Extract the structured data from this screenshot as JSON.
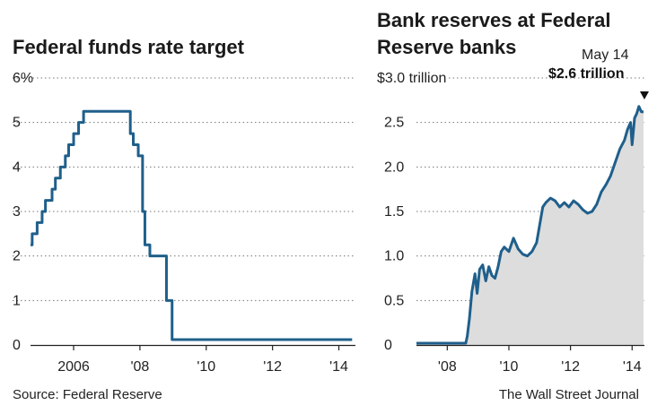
{
  "footer": {
    "source": "Source: Federal Reserve",
    "credit": "The Wall Street Journal"
  },
  "chart_data": [
    {
      "type": "line",
      "title": "Federal funds rate target",
      "ylim": [
        0,
        6
      ],
      "yticks": [
        0,
        1,
        2,
        3,
        4,
        5,
        6
      ],
      "ytick_labels": [
        "0",
        "1",
        "2",
        "3",
        "4",
        "5",
        "6%"
      ],
      "xlim": [
        2004.7,
        2014.5
      ],
      "xticks": [
        2006,
        2008,
        2010,
        2012,
        2014
      ],
      "xtick_labels": [
        "2006",
        "'08",
        "'10",
        "'12",
        "'14"
      ],
      "grid": true,
      "color": "#1f5f8b",
      "series": [
        {
          "step": true,
          "x": [
            2004.7,
            2004.75,
            2004.9,
            2005.05,
            2005.15,
            2005.35,
            2005.45,
            2005.6,
            2005.75,
            2005.85,
            2006.0,
            2006.15,
            2006.3,
            2006.5,
            2007.71,
            2007.8,
            2007.95,
            2008.08,
            2008.15,
            2008.3,
            2008.8,
            2008.97,
            2014.4
          ],
          "y": [
            2.25,
            2.5,
            2.75,
            3.0,
            3.25,
            3.5,
            3.75,
            4.0,
            4.25,
            4.5,
            4.75,
            5.0,
            5.25,
            5.25,
            4.75,
            4.5,
            4.25,
            3.0,
            2.25,
            2.0,
            1.0,
            0.12,
            0.12
          ]
        }
      ]
    },
    {
      "type": "area",
      "title": "Bank reserves at Federal Reserve banks",
      "ylim": [
        0,
        3.0
      ],
      "yticks": [
        0,
        0.5,
        1.0,
        1.5,
        2.0,
        2.5,
        3.0
      ],
      "ytick_labels": [
        "0",
        "0.5",
        "1.0",
        "1.5",
        "2.0",
        "2.5",
        "$3.0 trillion"
      ],
      "xlim": [
        2007.0,
        2014.4
      ],
      "xticks": [
        2008,
        2010,
        2012,
        2014
      ],
      "xtick_labels": [
        "'08",
        "'10",
        "'12",
        "'14"
      ],
      "grid": true,
      "color": "#1f5f8b",
      "fill": "#dddddd",
      "annotation": {
        "date": "May 14",
        "value": "$2.6 trillion",
        "x": 2014.37,
        "y": 2.62
      },
      "series": [
        {
          "x": [
            2007.0,
            2008.6,
            2008.65,
            2008.72,
            2008.8,
            2008.9,
            2008.97,
            2009.05,
            2009.15,
            2009.25,
            2009.35,
            2009.45,
            2009.55,
            2009.65,
            2009.75,
            2009.85,
            2010.0,
            2010.15,
            2010.3,
            2010.45,
            2010.6,
            2010.75,
            2010.9,
            2011.0,
            2011.1,
            2011.2,
            2011.35,
            2011.5,
            2011.65,
            2011.8,
            2011.95,
            2012.1,
            2012.25,
            2012.4,
            2012.55,
            2012.7,
            2012.85,
            2013.0,
            2013.15,
            2013.3,
            2013.45,
            2013.6,
            2013.75,
            2013.85,
            2013.95,
            2014.0,
            2014.08,
            2014.15,
            2014.22,
            2014.3,
            2014.37
          ],
          "y": [
            0.02,
            0.02,
            0.1,
            0.3,
            0.6,
            0.8,
            0.58,
            0.85,
            0.9,
            0.72,
            0.88,
            0.78,
            0.75,
            0.88,
            1.05,
            1.1,
            1.05,
            1.2,
            1.08,
            1.02,
            1.0,
            1.05,
            1.15,
            1.35,
            1.55,
            1.6,
            1.65,
            1.62,
            1.55,
            1.6,
            1.55,
            1.62,
            1.58,
            1.52,
            1.48,
            1.5,
            1.58,
            1.72,
            1.8,
            1.9,
            2.05,
            2.2,
            2.3,
            2.42,
            2.5,
            2.25,
            2.55,
            2.6,
            2.68,
            2.62,
            2.62
          ]
        }
      ]
    }
  ]
}
